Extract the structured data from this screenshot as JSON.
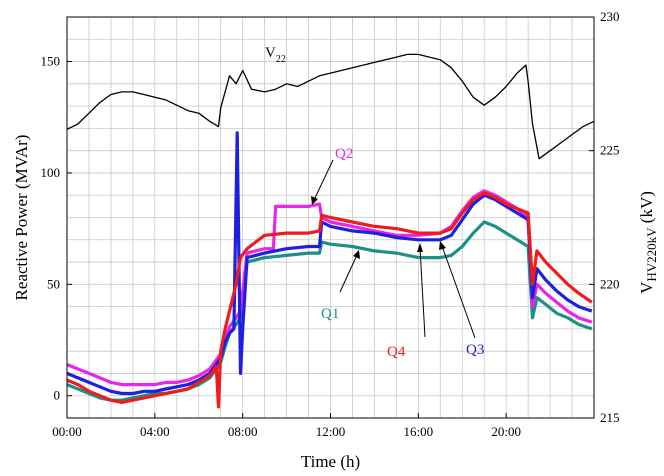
{
  "chart_data": {
    "type": "line",
    "xlabel": "Time (h)",
    "ylabel": "Reactive Power (MVAr)",
    "y2label_main": "V",
    "y2label_sub": "HV220kV",
    "y2label_unit": " (kV)",
    "xlim": [
      0,
      24
    ],
    "ylim": [
      -10,
      170
    ],
    "y2lim": [
      215,
      230
    ],
    "grid": true,
    "x_ticks": [
      {
        "value": 0,
        "label": "00:00"
      },
      {
        "value": 4,
        "label": "04:00"
      },
      {
        "value": 8,
        "label": "08:00"
      },
      {
        "value": 12,
        "label": "12:00"
      },
      {
        "value": 16,
        "label": "16:00"
      },
      {
        "value": 20,
        "label": "20:00"
      }
    ],
    "y_ticks": [
      {
        "value": 0,
        "label": "0"
      },
      {
        "value": 50,
        "label": "50"
      },
      {
        "value": 100,
        "label": "100"
      },
      {
        "value": 150,
        "label": "150"
      }
    ],
    "y2_ticks": [
      {
        "value": 215,
        "label": "215"
      },
      {
        "value": 220,
        "label": "220"
      },
      {
        "value": 225,
        "label": "225"
      },
      {
        "value": 230,
        "label": "230"
      }
    ],
    "series": [
      {
        "name": "V22",
        "axis": "right",
        "color": "#000000",
        "x": [
          0,
          0.5,
          1,
          1.5,
          2,
          2.5,
          3,
          3.5,
          4,
          4.5,
          5,
          5.5,
          6,
          6.5,
          6.9,
          7.0,
          7.2,
          7.4,
          7.7,
          8.0,
          8.4,
          9.0,
          9.5,
          10,
          10.5,
          11,
          11.5,
          12,
          13,
          14,
          15,
          15.5,
          16,
          16.5,
          17,
          17.5,
          18,
          18.5,
          19,
          19.5,
          20,
          20.5,
          20.9,
          21.0,
          21.2,
          21.5,
          22,
          22.5,
          23,
          23.5,
          24
        ],
        "y": [
          225.8,
          226.0,
          226.4,
          226.8,
          227.1,
          227.2,
          227.2,
          227.1,
          227.0,
          226.9,
          226.7,
          226.5,
          226.4,
          226.1,
          225.9,
          226.6,
          227.2,
          227.8,
          227.5,
          228.0,
          227.3,
          227.2,
          227.3,
          227.5,
          227.4,
          227.6,
          227.8,
          227.9,
          228.1,
          228.3,
          228.5,
          228.6,
          228.6,
          228.5,
          228.4,
          228.1,
          227.6,
          227.0,
          226.7,
          227.0,
          227.4,
          227.9,
          228.2,
          227.6,
          226.0,
          224.7,
          225.0,
          225.3,
          225.6,
          225.9,
          226.1
        ]
      },
      {
        "name": "Q1",
        "axis": "left",
        "color": "#1d8f88",
        "x": [
          0,
          0.5,
          1,
          1.5,
          2,
          2.5,
          3,
          3.5,
          4,
          4.5,
          5,
          5.5,
          6,
          6.5,
          6.8,
          7.0,
          7.2,
          7.4,
          7.7,
          7.9,
          8.2,
          9,
          10,
          11,
          11.5,
          11.6,
          12,
          13,
          14,
          15,
          16,
          17,
          17.5,
          18,
          18.5,
          19,
          19.5,
          20,
          20.5,
          21.0,
          21.2,
          21.4,
          21.8,
          22.3,
          22.8,
          23.3,
          23.9
        ],
        "y": [
          5,
          3,
          1,
          -1,
          -2,
          -2,
          -1,
          0,
          1,
          1,
          2,
          3,
          5,
          8,
          12,
          15,
          22,
          28,
          32,
          35,
          60,
          62,
          63,
          64,
          64,
          69,
          68,
          67,
          65,
          64,
          62,
          62,
          63,
          67,
          73,
          78,
          76,
          73,
          70,
          67,
          35,
          44,
          41,
          37,
          35,
          32,
          30
        ]
      },
      {
        "name": "Q2",
        "axis": "left",
        "color": "#e825e8",
        "x": [
          0,
          0.5,
          1,
          1.5,
          2,
          2.5,
          3,
          3.5,
          4,
          4.5,
          5,
          5.5,
          6,
          6.5,
          6.8,
          7.0,
          7.2,
          7.4,
          7.7,
          7.9,
          8.2,
          9,
          9.4,
          9.5,
          10,
          11,
          11.5,
          11.6,
          12,
          13,
          14,
          15,
          16,
          17,
          17.5,
          18,
          18.5,
          19,
          19.5,
          20,
          20.5,
          21.0,
          21.2,
          21.4,
          21.8,
          22.3,
          22.8,
          23.3,
          23.9
        ],
        "y": [
          14,
          12,
          10,
          8,
          6,
          5,
          5,
          5,
          5,
          6,
          6,
          7,
          9,
          12,
          16,
          19,
          25,
          31,
          35,
          38,
          64,
          66,
          66,
          85,
          85,
          85,
          86,
          80,
          78,
          76,
          74,
          72,
          72,
          73,
          76,
          83,
          89,
          92,
          90,
          87,
          84,
          80,
          40,
          50,
          46,
          42,
          38,
          35,
          33
        ]
      },
      {
        "name": "Q3",
        "axis": "left",
        "color": "#1f1fe0",
        "x": [
          0,
          0.5,
          1,
          1.5,
          2,
          2.5,
          3,
          3.5,
          4,
          4.5,
          5,
          5.5,
          6,
          6.5,
          6.8,
          7.0,
          7.2,
          7.4,
          7.6,
          7.75,
          7.9,
          8.0,
          8.2,
          9,
          10,
          11,
          11.5,
          11.6,
          12,
          13,
          14,
          15,
          16,
          17,
          17.5,
          18,
          18.5,
          19,
          19.5,
          20,
          20.5,
          21.0,
          21.2,
          21.4,
          21.8,
          22.3,
          22.8,
          23.3,
          23.9
        ],
        "y": [
          10,
          8,
          6,
          4,
          2,
          1,
          1,
          2,
          2,
          3,
          4,
          5,
          7,
          10,
          14,
          17,
          24,
          28,
          30,
          118,
          10,
          30,
          62,
          64,
          66,
          67,
          67,
          78,
          76,
          74,
          73,
          71,
          70,
          70,
          72,
          79,
          86,
          90,
          88,
          85,
          82,
          79,
          44,
          57,
          52,
          47,
          43,
          40,
          38
        ]
      },
      {
        "name": "Q4",
        "axis": "left",
        "color": "#ee1c1c",
        "x": [
          0,
          0.5,
          1,
          1.5,
          2,
          2.5,
          3,
          3.5,
          4,
          4.5,
          5,
          5.5,
          6,
          6.5,
          6.8,
          6.9,
          7.0,
          7.2,
          7.4,
          7.7,
          7.9,
          8.2,
          9,
          10,
          11,
          11.5,
          11.6,
          12,
          13,
          14,
          15,
          16,
          17,
          17.5,
          18,
          18.5,
          19,
          19.5,
          20,
          20.5,
          21.0,
          21.2,
          21.4,
          21.8,
          22.3,
          22.8,
          23.3,
          23.9
        ],
        "y": [
          7,
          5,
          2,
          0,
          -2,
          -3,
          -2,
          -1,
          0,
          1,
          2,
          3,
          6,
          9,
          13,
          -5,
          20,
          30,
          38,
          50,
          62,
          66,
          72,
          73,
          73,
          74,
          81,
          80,
          78,
          76,
          75,
          73,
          73,
          75,
          82,
          88,
          91,
          89,
          86,
          84,
          82,
          50,
          65,
          60,
          55,
          50,
          46,
          42
        ]
      }
    ],
    "annotations": [
      {
        "label": "V",
        "sub": "22",
        "color": "#000000"
      },
      {
        "label": "Q2",
        "color": "#e825e8"
      },
      {
        "label": "Q1",
        "color": "#1d8f88"
      },
      {
        "label": "Q4",
        "color": "#ee1c1c"
      },
      {
        "label": "Q3",
        "color": "#1f1fe0"
      }
    ]
  }
}
